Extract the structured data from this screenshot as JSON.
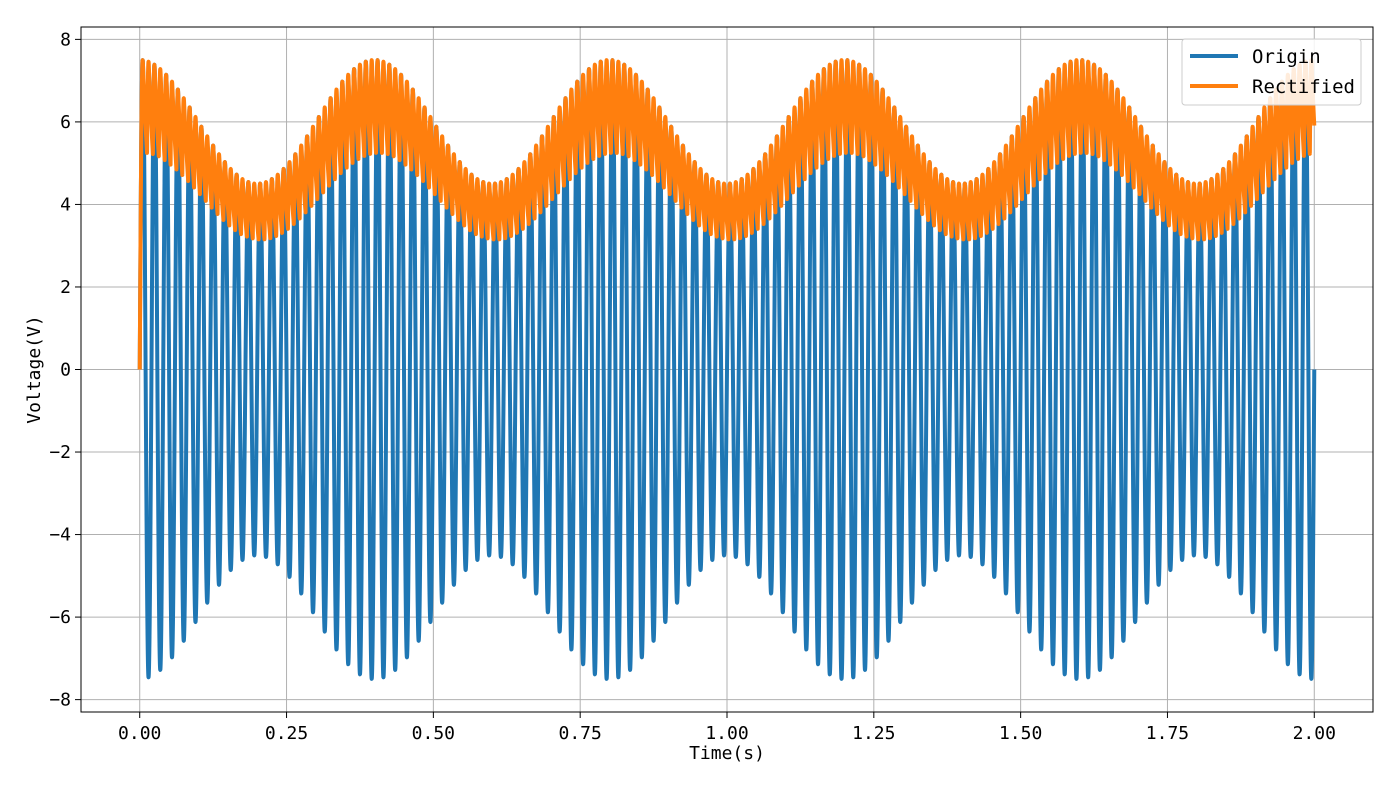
{
  "chart_data": {
    "type": "line",
    "title": "",
    "xlabel": "Time(s)",
    "ylabel": "Voltage(V)",
    "xlim": [
      -0.1,
      2.1
    ],
    "ylim": [
      -8.3,
      8.3
    ],
    "xticks": [
      0.0,
      0.25,
      0.5,
      0.75,
      1.0,
      1.25,
      1.5,
      1.75,
      2.0
    ],
    "xtick_labels": [
      "0.00",
      "0.25",
      "0.50",
      "0.75",
      "1.00",
      "1.25",
      "1.50",
      "1.75",
      "2.00"
    ],
    "yticks": [
      -8,
      -6,
      -4,
      -2,
      0,
      2,
      4,
      6,
      8
    ],
    "ytick_labels": [
      "−8",
      "−6",
      "−4",
      "−2",
      "0",
      "2",
      "4",
      "6",
      "8"
    ],
    "grid": true,
    "legend_position": "top-right",
    "series": [
      {
        "name": "Origin",
        "color": "#1f77b4",
        "description_formula": "v(t) = (6 + 1.5*cos(2*pi*2.5*t)) * sin(2*pi*50*t)",
        "carrier_hz": 50,
        "envelope_mean": 6.0,
        "envelope_amplitude": 1.5,
        "envelope_hz": 2.5,
        "t_range": [
          0,
          2.0
        ]
      },
      {
        "name": "Rectified",
        "color": "#ff7f0e",
        "description_formula": "peak-detector output of |Origin| with RC discharge",
        "start_value": 0,
        "t_range": [
          0,
          2.0
        ]
      }
    ]
  }
}
